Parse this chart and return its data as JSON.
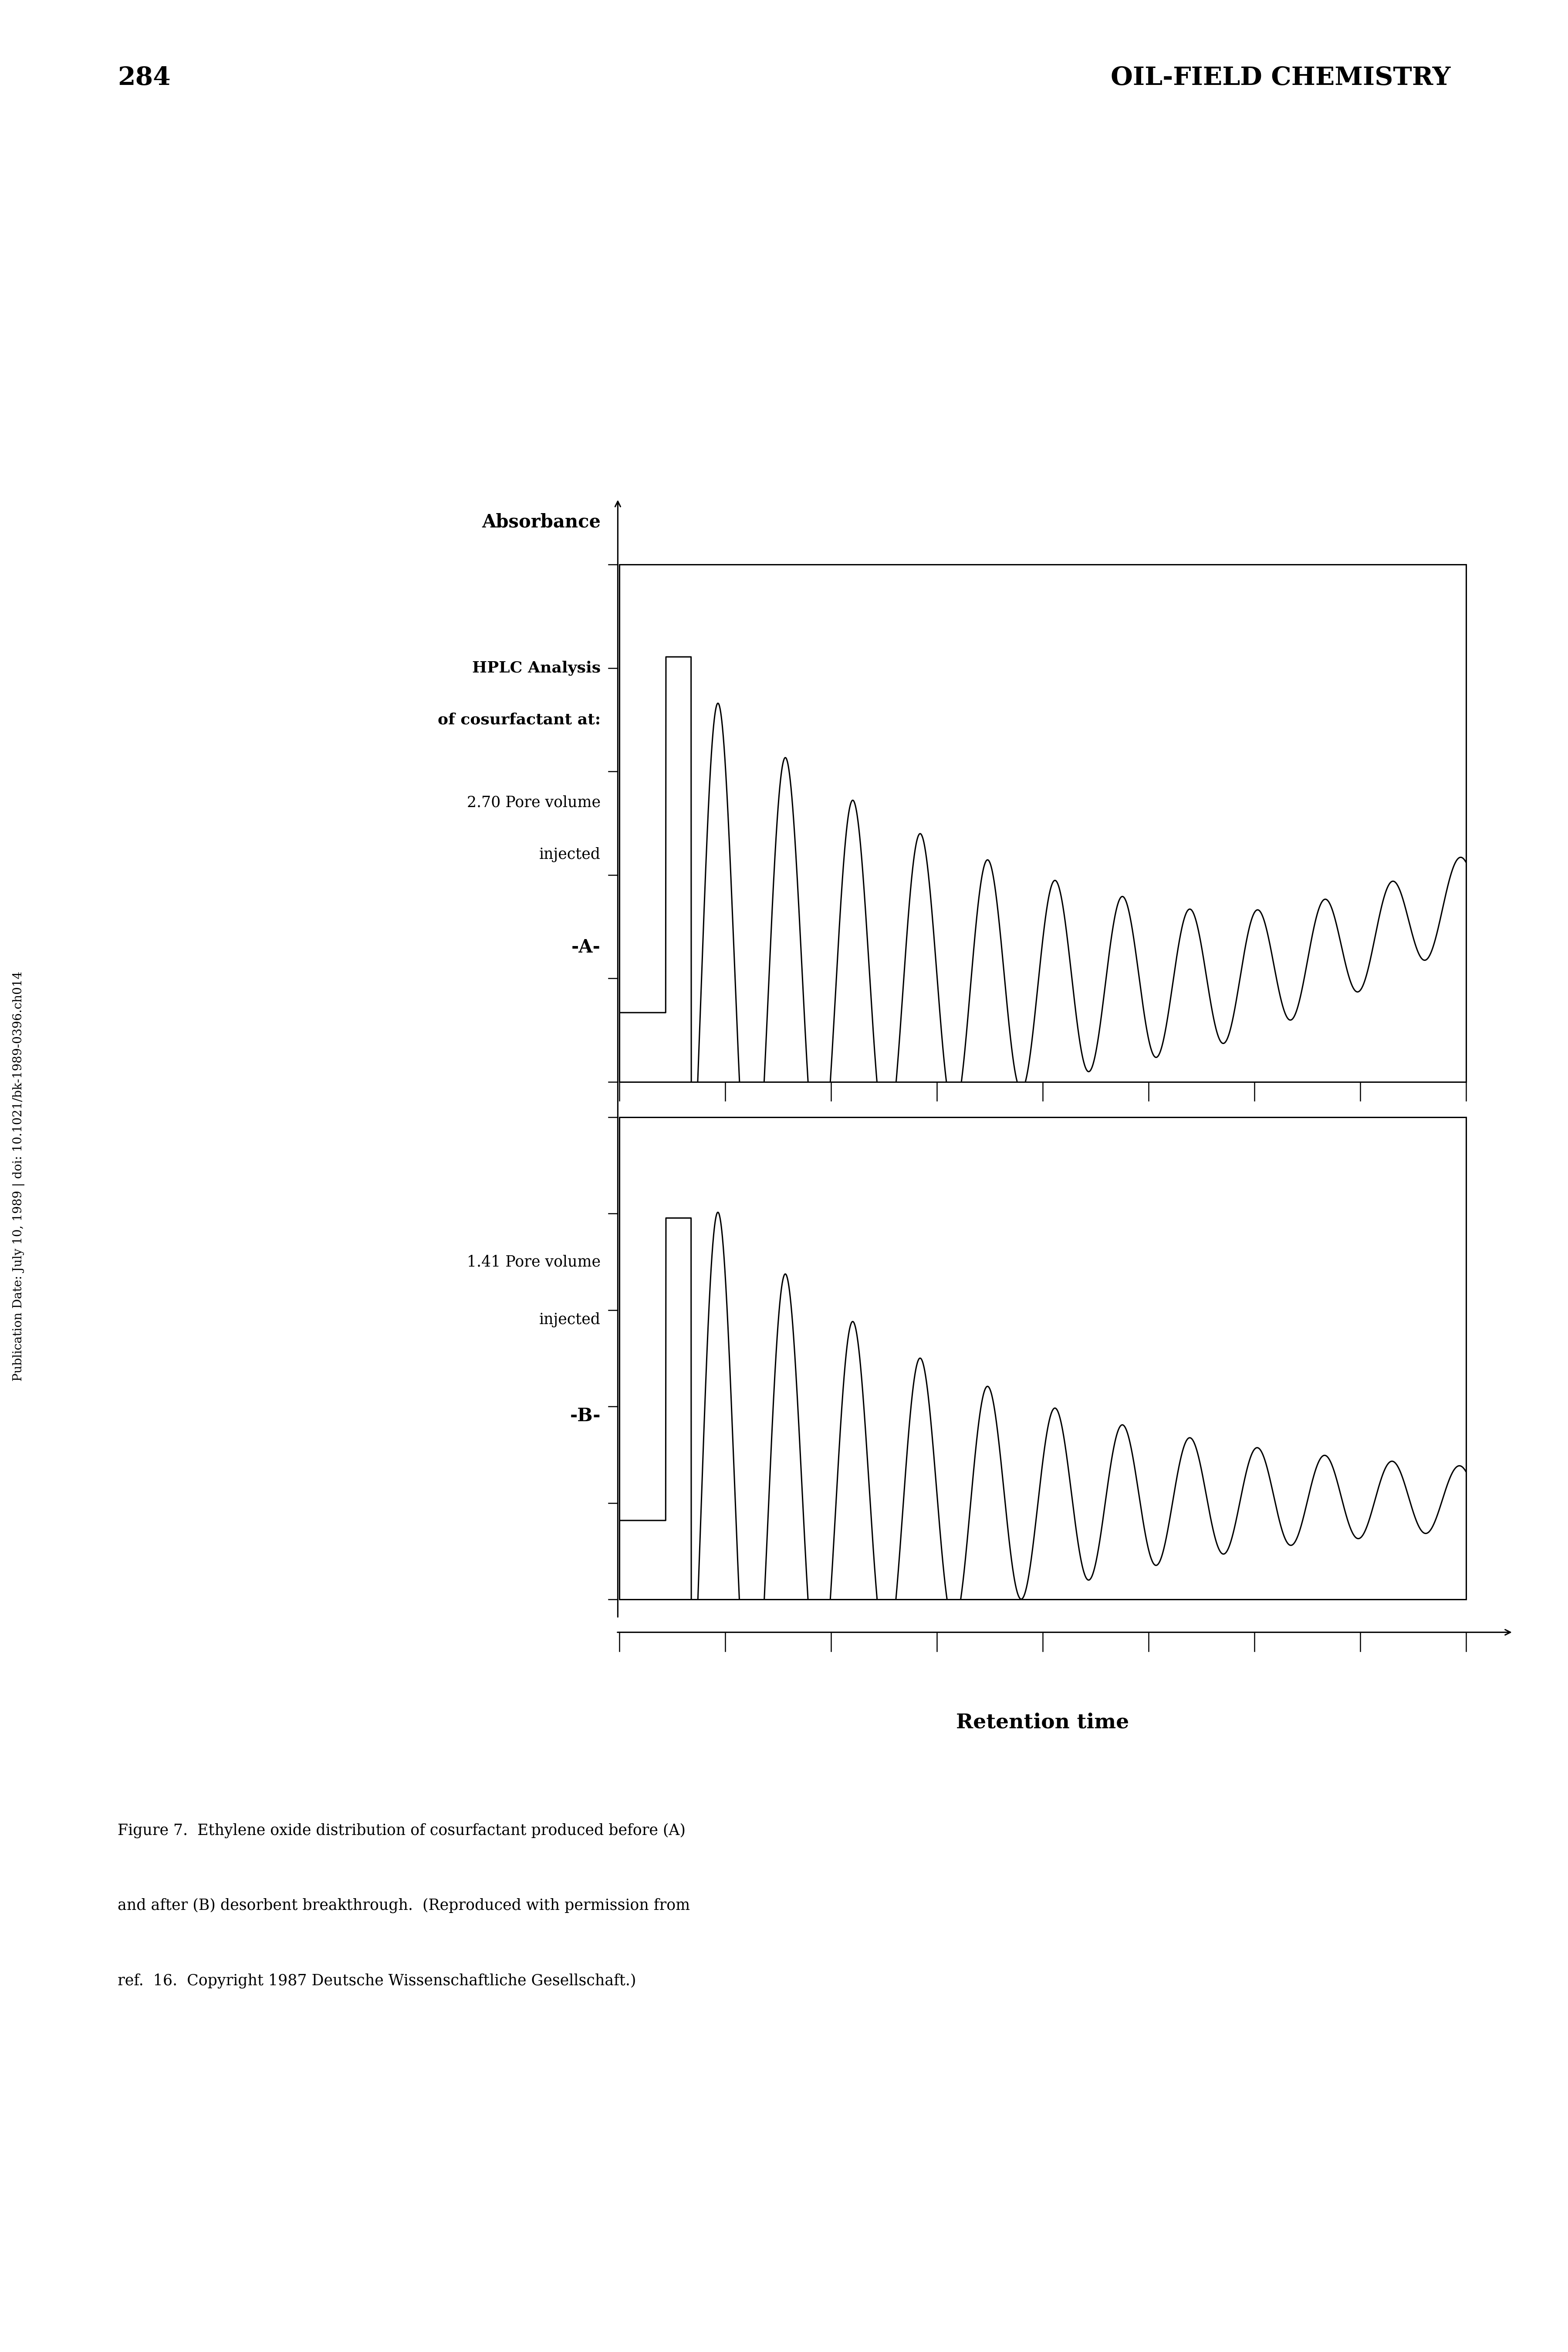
{
  "page_number": "284",
  "page_header": "OIL-FIELD CHEMISTRY",
  "sidebar_text": "Publication Date: July 10, 1989 | doi: 10.1021/bk-1989-0396.ch014",
  "ylabel": "Absorbance",
  "xlabel": "Retention time",
  "panel_A_label": "-A-",
  "panel_B_label": "-B-",
  "hplc_line1": "HPLC Analysis",
  "hplc_line2": "of cosurfactant at:",
  "pore_vol_A": "2.70 Pore volume",
  "pore_vol_A2": "injected",
  "pore_vol_B": "1.41 Pore volume",
  "pore_vol_B2": "injected",
  "caption_line1": "Figure 7.  Ethylene oxide distribution of cosurfactant produced before (A)",
  "caption_line2": "and after (B) desorbent breakthrough.  (Reproduced with permission from",
  "caption_line3": "ref.  16.  Copyright 1987 Deutsche Wissenschaftliche Gesellschaft.)",
  "background_color": "#ffffff",
  "line_color": "#000000",
  "fig_width": 36.0,
  "fig_height": 54.0
}
